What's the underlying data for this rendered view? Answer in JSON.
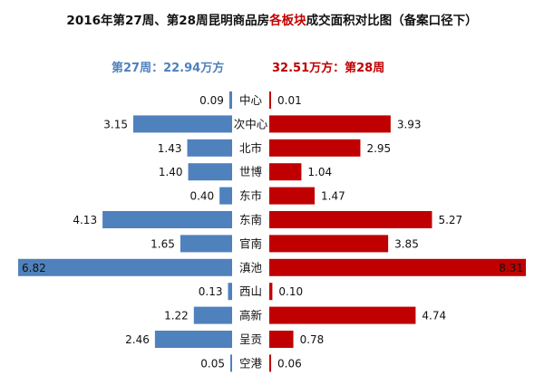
{
  "chart_data": {
    "type": "bar",
    "title_parts": [
      "2016年第27周、第28周昆明商品房",
      "各板块",
      "成交面积对比图（备案口径下）"
    ],
    "legend": {
      "left": "第27周：22.94万方",
      "right": "32.51万方：第28周"
    },
    "categories": [
      "中心",
      "次中心",
      "北市",
      "世博",
      "东市",
      "东南",
      "官南",
      "滇池",
      "西山",
      "高新",
      "呈贡",
      "空港"
    ],
    "series": [
      {
        "values": [
          0.09,
          3.15,
          1.43,
          1.4,
          0.4,
          4.13,
          1.65,
          6.82,
          0.13,
          1.22,
          2.46,
          0.05
        ],
        "labels": [
          "0.09",
          "3.15",
          "1.43",
          "1.40",
          "0.40",
          "4.13",
          "1.65",
          "6.82",
          "0.13",
          "1.22",
          "2.46",
          "0.05"
        ],
        "color": "#4f81bd"
      },
      {
        "values": [
          0.01,
          3.93,
          2.95,
          1.04,
          1.47,
          5.27,
          3.85,
          8.31,
          0.1,
          4.74,
          0.78,
          0.06
        ],
        "labels": [
          "0.01",
          "3.93",
          "2.95",
          "1.04",
          "1.47",
          "5.27",
          "3.85",
          "8.31",
          "0.10",
          "4.74",
          "0.78",
          "0.06"
        ],
        "color": "#c00000"
      }
    ]
  }
}
